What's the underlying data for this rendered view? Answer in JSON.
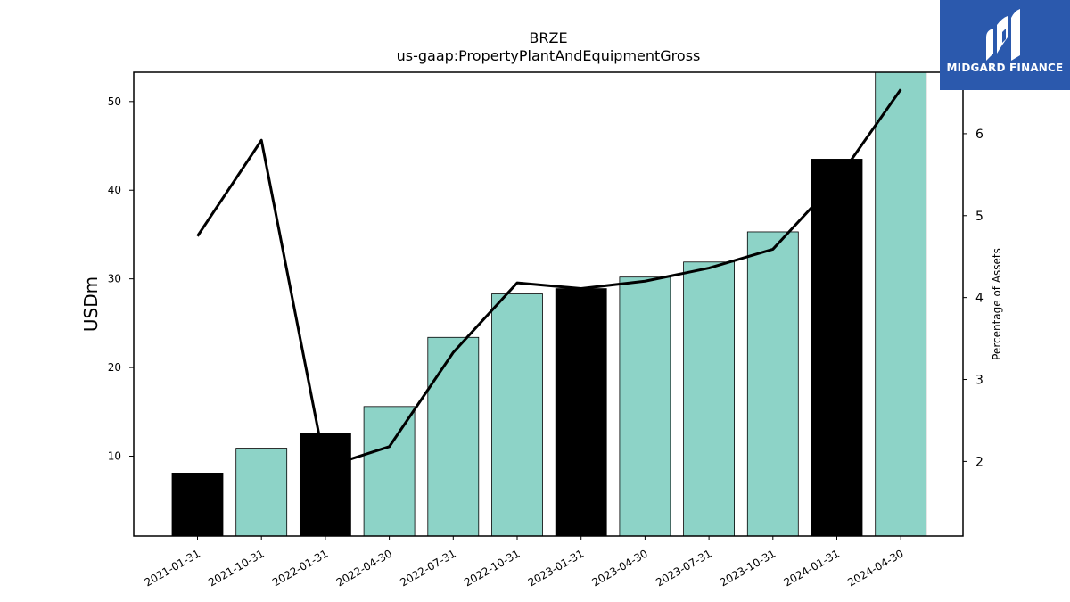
{
  "chart_data": {
    "type": "bar",
    "title": "BRZE",
    "subtitle": "us-gaap:PropertyPlantAndEquipmentGross",
    "ylabel": "USDm",
    "y2label": "Percentage of Assets",
    "categories": [
      "2021-01-31",
      "2021-10-31",
      "2022-01-31",
      "2022-04-30",
      "2022-07-31",
      "2022-10-31",
      "2023-01-31",
      "2023-04-30",
      "2023-07-31",
      "2023-10-31",
      "2024-01-31",
      "2024-04-30"
    ],
    "series": [
      {
        "values": [
          8.1,
          10.9,
          12.6,
          15.6,
          23.4,
          28.3,
          28.9,
          30.2,
          31.9,
          35.3,
          43.5,
          53.5
        ],
        "bar_colors": [
          "#000000",
          "#8dd3c7",
          "#000000",
          "#8dd3c7",
          "#8dd3c7",
          "#8dd3c7",
          "#000000",
          "#8dd3c7",
          "#8dd3c7",
          "#8dd3c7",
          "#000000",
          "#8dd3c7"
        ]
      },
      {
        "axis": "right",
        "type": "line",
        "color": "#000000",
        "values": [
          4.75,
          5.92,
          1.93,
          2.18,
          3.33,
          4.18,
          4.11,
          4.2,
          4.36,
          4.59,
          5.43,
          6.54
        ]
      }
    ],
    "ylim": [
      1,
      53.3
    ],
    "y_ticks": [
      10,
      20,
      30,
      40,
      50
    ],
    "y2lim": [
      1.09,
      6.75
    ],
    "y2_ticks": [
      2,
      3,
      4,
      5,
      6
    ],
    "legend": "none",
    "grid": false
  },
  "logo": {
    "text": "MIDGARD FINANCE"
  }
}
